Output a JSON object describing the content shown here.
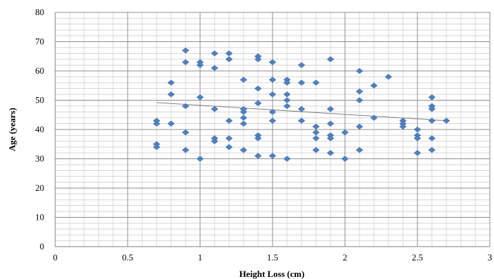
{
  "chart_data": {
    "type": "scatter",
    "xlabel": "Height Loss (cm)",
    "ylabel": "Age (years)",
    "xlim": [
      0,
      3
    ],
    "ylim": [
      0,
      80
    ],
    "x_major_ticks": [
      0,
      0.5,
      1,
      1.5,
      2,
      2.5,
      3
    ],
    "x_tick_labels": [
      "0",
      "0.5",
      "1",
      "1.5",
      "2",
      "2.5",
      "3"
    ],
    "y_major_ticks": [
      0,
      10,
      20,
      30,
      40,
      50,
      60,
      70,
      80
    ],
    "y_tick_labels": [
      "0",
      "10",
      "20",
      "30",
      "40",
      "50",
      "60",
      "70",
      "80"
    ],
    "x_minor_step": 0.1,
    "y_minor_step": 2,
    "grid": "major and minor",
    "legend": "none",
    "marker": "diamond",
    "marker_color": "#4f81bd",
    "trendline_color": "#7f7f7f",
    "trendline": {
      "type": "linear",
      "x": [
        0.7,
        2.7
      ],
      "y": [
        49.2,
        43.0
      ]
    },
    "points": [
      [
        0.7,
        43
      ],
      [
        0.7,
        42
      ],
      [
        0.7,
        35
      ],
      [
        0.7,
        34
      ],
      [
        0.8,
        56
      ],
      [
        0.8,
        52
      ],
      [
        0.8,
        42
      ],
      [
        0.9,
        67
      ],
      [
        0.9,
        63
      ],
      [
        0.9,
        48
      ],
      [
        0.9,
        39
      ],
      [
        0.9,
        33
      ],
      [
        1.0,
        63
      ],
      [
        1.0,
        62
      ],
      [
        1.0,
        51
      ],
      [
        1.0,
        30
      ],
      [
        1.1,
        66
      ],
      [
        1.1,
        61
      ],
      [
        1.1,
        47
      ],
      [
        1.1,
        37
      ],
      [
        1.1,
        36
      ],
      [
        1.2,
        66
      ],
      [
        1.2,
        64
      ],
      [
        1.2,
        43
      ],
      [
        1.2,
        37
      ],
      [
        1.2,
        34
      ],
      [
        1.3,
        57
      ],
      [
        1.3,
        47
      ],
      [
        1.3,
        46
      ],
      [
        1.3,
        44
      ],
      [
        1.3,
        42
      ],
      [
        1.3,
        33
      ],
      [
        1.4,
        65
      ],
      [
        1.4,
        64
      ],
      [
        1.4,
        54
      ],
      [
        1.4,
        49
      ],
      [
        1.4,
        38
      ],
      [
        1.4,
        37
      ],
      [
        1.4,
        31
      ],
      [
        1.5,
        63
      ],
      [
        1.5,
        57
      ],
      [
        1.5,
        52
      ],
      [
        1.5,
        46
      ],
      [
        1.5,
        43
      ],
      [
        1.5,
        31
      ],
      [
        1.6,
        57
      ],
      [
        1.6,
        56
      ],
      [
        1.6,
        52
      ],
      [
        1.6,
        50
      ],
      [
        1.6,
        48
      ],
      [
        1.6,
        30
      ],
      [
        1.7,
        62
      ],
      [
        1.7,
        56
      ],
      [
        1.7,
        47
      ],
      [
        1.7,
        43
      ],
      [
        1.8,
        56
      ],
      [
        1.8,
        41
      ],
      [
        1.8,
        39
      ],
      [
        1.8,
        37
      ],
      [
        1.8,
        33
      ],
      [
        1.9,
        64
      ],
      [
        1.9,
        47
      ],
      [
        1.9,
        42
      ],
      [
        1.9,
        38
      ],
      [
        1.9,
        37
      ],
      [
        1.9,
        32
      ],
      [
        2.0,
        39
      ],
      [
        2.0,
        30
      ],
      [
        2.1,
        60
      ],
      [
        2.1,
        53
      ],
      [
        2.1,
        50
      ],
      [
        2.1,
        41
      ],
      [
        2.1,
        33
      ],
      [
        2.2,
        55
      ],
      [
        2.2,
        44
      ],
      [
        2.3,
        58
      ],
      [
        2.4,
        43
      ],
      [
        2.4,
        42
      ],
      [
        2.4,
        41
      ],
      [
        2.5,
        40
      ],
      [
        2.5,
        38
      ],
      [
        2.5,
        37
      ],
      [
        2.5,
        32
      ],
      [
        2.6,
        51
      ],
      [
        2.6,
        48
      ],
      [
        2.6,
        47
      ],
      [
        2.6,
        43
      ],
      [
        2.6,
        37
      ],
      [
        2.6,
        33
      ],
      [
        2.7,
        43
      ]
    ]
  }
}
